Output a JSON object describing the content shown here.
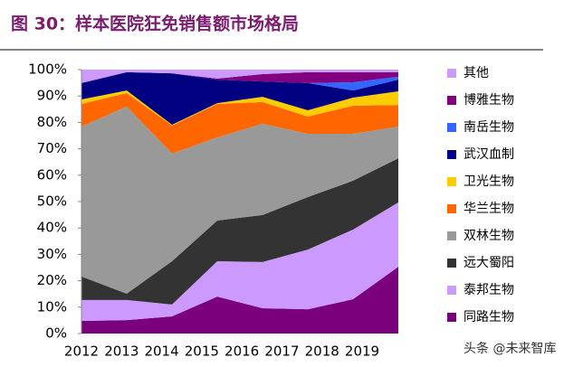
{
  "chart_data": {
    "type": "stacked_area",
    "title": "图 30：样本医院狂免销售额市场格局",
    "watermark": "头条 @未来智库",
    "categories": [
      "2012",
      "2013",
      "2014",
      "2015",
      "2016",
      "2017",
      "2018",
      "2019"
    ],
    "ylim": [
      0,
      100
    ],
    "yticks": [
      {
        "value": 0,
        "label": "0%"
      },
      {
        "value": 10,
        "label": "10%"
      },
      {
        "value": 20,
        "label": "20%"
      },
      {
        "value": 30,
        "label": "30%"
      },
      {
        "value": 40,
        "label": "40%"
      },
      {
        "value": 50,
        "label": "50%"
      },
      {
        "value": 60,
        "label": "60%"
      },
      {
        "value": 70,
        "label": "70%"
      },
      {
        "value": 80,
        "label": "80%"
      },
      {
        "value": 90,
        "label": "90%"
      },
      {
        "value": 100,
        "label": "100%"
      }
    ],
    "series": [
      {
        "name": "同路生物",
        "color": "#7b007b",
        "values": [
          4.8,
          5.1,
          6.5,
          14.0,
          9.6,
          9.2,
          13.0,
          25.3
        ]
      },
      {
        "name": "泰邦生物",
        "color": "#cc99ff",
        "values": [
          7.9,
          7.6,
          4.5,
          13.4,
          17.5,
          22.6,
          26.4,
          24.4
        ]
      },
      {
        "name": "远大蜀阳",
        "color": "#333333",
        "values": [
          8.9,
          2.4,
          16.4,
          15.4,
          17.8,
          19.9,
          18.5,
          16.7
        ]
      },
      {
        "name": "双林生物",
        "color": "#999999",
        "values": [
          56.8,
          70.9,
          40.8,
          31.5,
          34.6,
          24.0,
          17.8,
          12.0
        ]
      },
      {
        "name": "华兰生物",
        "color": "#ff6600",
        "values": [
          8.6,
          5.1,
          10.6,
          12.7,
          8.2,
          6.5,
          10.6,
          8.2
        ]
      },
      {
        "name": "卫光生物",
        "color": "#ffcc00",
        "values": [
          1.7,
          1.0,
          0.3,
          0.3,
          2.0,
          2.4,
          3.1,
          5.2
        ]
      },
      {
        "name": "武汉血制",
        "color": "#000080",
        "values": [
          6.2,
          6.9,
          19.5,
          8.9,
          5.8,
          10.3,
          2.7,
          4.4
        ]
      },
      {
        "name": "南岳生物",
        "color": "#3366ff",
        "values": [
          0,
          0,
          0,
          0,
          0,
          0,
          3.1,
          1.1
        ]
      },
      {
        "name": "博雅生物",
        "color": "#800080",
        "values": [
          0,
          0,
          0,
          0.4,
          2.8,
          4.1,
          3.8,
          1.7
        ]
      },
      {
        "name": "其他",
        "color": "#cc99ff",
        "values": [
          5.1,
          1.0,
          1.4,
          3.4,
          1.7,
          1.0,
          1.0,
          1.0
        ]
      }
    ]
  }
}
